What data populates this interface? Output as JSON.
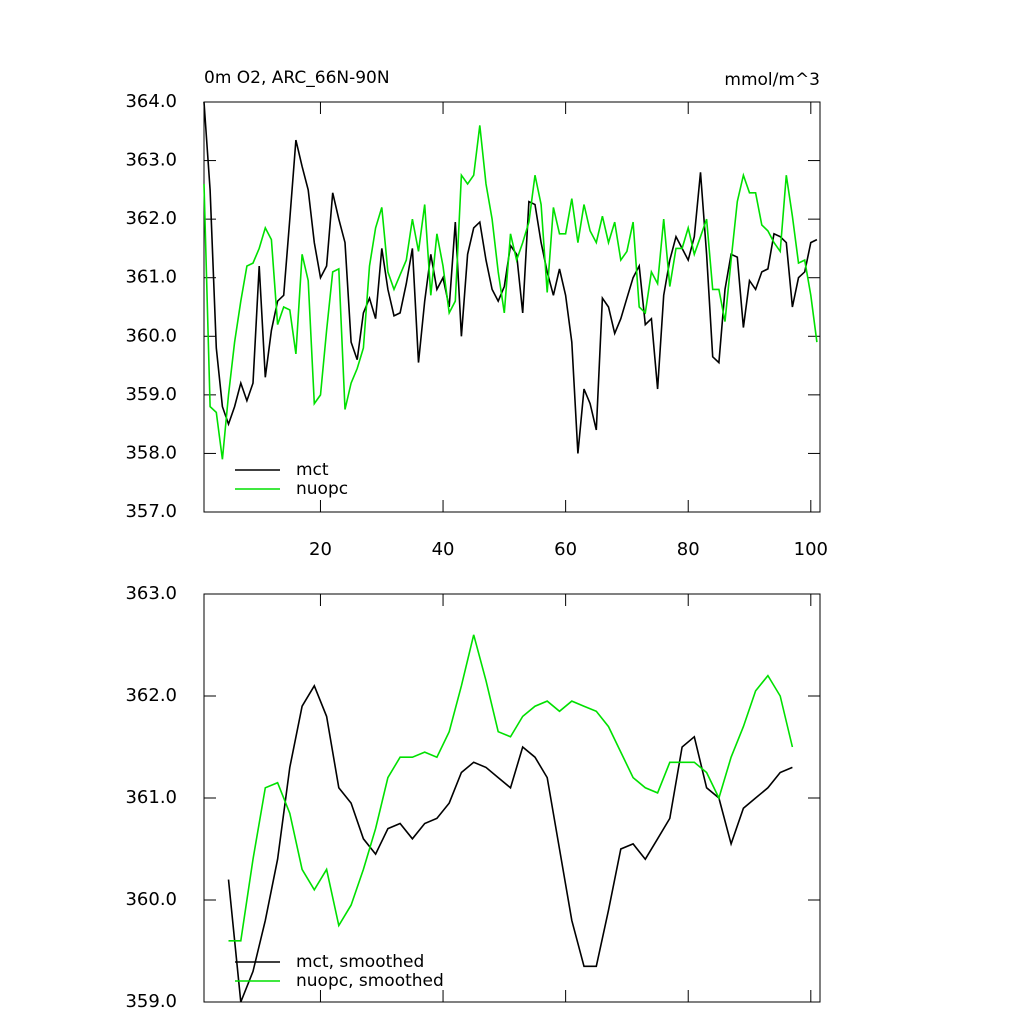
{
  "chart_data": [
    {
      "type": "line",
      "title": "0m O2, ARC_66N-90N",
      "units": "mmol/m^3",
      "x": [
        1,
        2,
        3,
        4,
        5,
        6,
        7,
        8,
        9,
        10,
        11,
        12,
        13,
        14,
        15,
        16,
        17,
        18,
        19,
        20,
        21,
        22,
        23,
        24,
        25,
        26,
        27,
        28,
        29,
        30,
        31,
        32,
        33,
        34,
        35,
        36,
        37,
        38,
        39,
        40,
        41,
        42,
        43,
        44,
        45,
        46,
        47,
        48,
        49,
        50,
        51,
        52,
        53,
        54,
        55,
        56,
        57,
        58,
        59,
        60,
        61,
        62,
        63,
        64,
        65,
        66,
        67,
        68,
        69,
        70,
        71,
        72,
        73,
        74,
        75,
        76,
        77,
        78,
        79,
        80,
        81,
        82,
        83,
        84,
        85,
        86,
        87,
        88,
        89,
        90,
        91,
        92,
        93,
        94,
        95,
        96,
        97,
        98,
        99,
        100,
        101
      ],
      "series": [
        {
          "name": "mct",
          "color": "#000000",
          "values": [
            364.0,
            362.5,
            359.8,
            358.8,
            358.5,
            358.8,
            359.2,
            358.9,
            359.2,
            361.2,
            359.3,
            360.1,
            360.6,
            360.7,
            362.0,
            363.35,
            362.9,
            362.5,
            361.6,
            361.0,
            361.2,
            362.45,
            362.0,
            361.6,
            359.9,
            359.6,
            360.4,
            360.65,
            360.3,
            361.5,
            360.8,
            360.35,
            360.4,
            360.9,
            361.5,
            359.55,
            360.6,
            361.4,
            360.8,
            361.0,
            360.5,
            361.95,
            360.0,
            361.4,
            361.85,
            361.95,
            361.3,
            360.8,
            360.6,
            360.85,
            361.55,
            361.4,
            360.4,
            362.3,
            362.25,
            361.6,
            361.1,
            360.7,
            361.15,
            360.7,
            359.9,
            358.0,
            359.1,
            358.85,
            358.4,
            360.65,
            360.5,
            360.05,
            360.3,
            360.65,
            361.0,
            361.2,
            360.2,
            360.3,
            359.1,
            360.7,
            361.3,
            361.7,
            361.5,
            361.3,
            361.7,
            362.8,
            361.4,
            359.65,
            359.55,
            360.8,
            361.4,
            361.35,
            360.15,
            360.95,
            360.8,
            361.1,
            361.15,
            361.75,
            361.7,
            361.6,
            360.5,
            361.0,
            361.1,
            361.6,
            361.65
          ]
        },
        {
          "name": "nuopc",
          "color": "#00e000",
          "values": [
            362.6,
            358.8,
            358.7,
            357.9,
            359.0,
            359.9,
            360.6,
            361.2,
            361.25,
            361.5,
            361.85,
            361.65,
            360.2,
            360.5,
            360.45,
            359.7,
            361.4,
            360.95,
            358.85,
            359.0,
            360.1,
            361.1,
            361.15,
            358.75,
            359.2,
            359.45,
            359.8,
            361.2,
            361.85,
            362.2,
            361.1,
            360.8,
            361.05,
            361.3,
            362.0,
            361.45,
            362.25,
            360.7,
            361.75,
            361.2,
            360.4,
            360.6,
            362.75,
            362.6,
            362.75,
            363.6,
            362.6,
            362.0,
            361.1,
            360.4,
            361.75,
            361.3,
            361.6,
            361.95,
            362.75,
            362.25,
            360.75,
            362.2,
            361.75,
            361.75,
            362.35,
            361.6,
            362.25,
            361.8,
            361.6,
            362.05,
            361.6,
            361.95,
            361.3,
            361.45,
            361.95,
            360.5,
            360.4,
            361.1,
            360.9,
            362.0,
            360.85,
            361.5,
            361.5,
            361.85,
            361.4,
            361.7,
            362.0,
            360.8,
            360.8,
            360.25,
            361.3,
            362.3,
            362.75,
            362.45,
            362.45,
            361.9,
            361.8,
            361.6,
            361.45,
            362.75,
            362.05,
            361.25,
            361.3,
            360.7,
            359.9
          ]
        }
      ],
      "xlim": [
        1,
        101.5
      ],
      "xticks": [
        20,
        40,
        60,
        80,
        100
      ],
      "ylim": [
        357,
        364
      ],
      "yticks": [
        {
          "value": 357,
          "label": "357.0"
        },
        {
          "value": 358,
          "label": "358.0"
        },
        {
          "value": 359,
          "label": "359.0"
        },
        {
          "value": 360,
          "label": "360.0"
        },
        {
          "value": 361,
          "label": "361.0"
        },
        {
          "value": 362,
          "label": "362.0"
        },
        {
          "value": 363,
          "label": "363.0"
        },
        {
          "value": 364,
          "label": "364.0"
        }
      ]
    },
    {
      "type": "line",
      "x": [
        5,
        7,
        9,
        11,
        13,
        15,
        17,
        19,
        21,
        23,
        25,
        27,
        29,
        31,
        33,
        35,
        37,
        39,
        41,
        43,
        45,
        47,
        49,
        51,
        53,
        55,
        57,
        59,
        61,
        63,
        65,
        67,
        69,
        71,
        73,
        75,
        77,
        79,
        81,
        83,
        85,
        87,
        89,
        91,
        93,
        95,
        97
      ],
      "series": [
        {
          "name": "mct, smoothed",
          "color": "#000000",
          "values": [
            360.2,
            359.0,
            359.3,
            359.8,
            360.4,
            361.3,
            361.9,
            362.1,
            361.8,
            361.1,
            360.95,
            360.6,
            360.45,
            360.7,
            360.75,
            360.6,
            360.75,
            360.8,
            360.95,
            361.25,
            361.35,
            361.3,
            361.2,
            361.1,
            361.5,
            361.4,
            361.2,
            360.5,
            359.8,
            359.35,
            359.35,
            359.9,
            360.5,
            360.55,
            360.4,
            360.6,
            360.8,
            361.5,
            361.6,
            361.1,
            361.0,
            360.55,
            360.9,
            361.0,
            361.1,
            361.25,
            361.3
          ]
        },
        {
          "name": "nuopc, smoothed",
          "color": "#00e000",
          "values": [
            359.6,
            359.6,
            360.4,
            361.1,
            361.15,
            360.85,
            360.3,
            360.1,
            360.3,
            359.75,
            359.95,
            360.3,
            360.7,
            361.2,
            361.4,
            361.4,
            361.45,
            361.4,
            361.65,
            362.1,
            362.6,
            362.15,
            361.65,
            361.6,
            361.8,
            361.9,
            361.95,
            361.85,
            361.95,
            361.9,
            361.85,
            361.7,
            361.45,
            361.2,
            361.1,
            361.05,
            361.35,
            361.35,
            361.35,
            361.25,
            361.0,
            361.4,
            361.7,
            362.05,
            362.2,
            362.0,
            361.5
          ]
        }
      ],
      "xlim": [
        1,
        101.5
      ],
      "xticks": [
        20,
        40,
        60,
        80,
        100
      ],
      "ylim": [
        359,
        363
      ],
      "yticks": [
        {
          "value": 359,
          "label": "359.0"
        },
        {
          "value": 360,
          "label": "360.0"
        },
        {
          "value": 361,
          "label": "361.0"
        },
        {
          "value": 362,
          "label": "362.0"
        },
        {
          "value": 363,
          "label": "363.0"
        }
      ]
    }
  ]
}
